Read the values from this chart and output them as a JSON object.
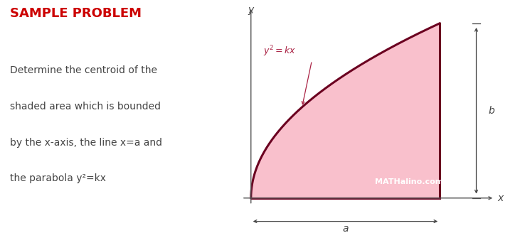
{
  "title": "SAMPLE PROBLEM",
  "title_color": "#cc0000",
  "title_fontsize": 13,
  "desc_lines": [
    "Determine the centroid of the",
    "shaded area which is bounded",
    "by the x-axis, the line x=a and",
    "the parabola y²=kx"
  ],
  "desc_fontsize": 10,
  "desc_color": "#444444",
  "curve_color": "#6b0020",
  "fill_color": "#f9c0cc",
  "curve_linewidth": 2.2,
  "axis_color": "#555555",
  "label_color": "#444444",
  "watermark": "MATHalino.com",
  "watermark_color": "#ffffff",
  "watermark_fontsize": 8,
  "equation_color": "#aa2244",
  "bg_color": "#ffffff",
  "fig_width": 7.38,
  "fig_height": 3.28,
  "dpi": 100
}
